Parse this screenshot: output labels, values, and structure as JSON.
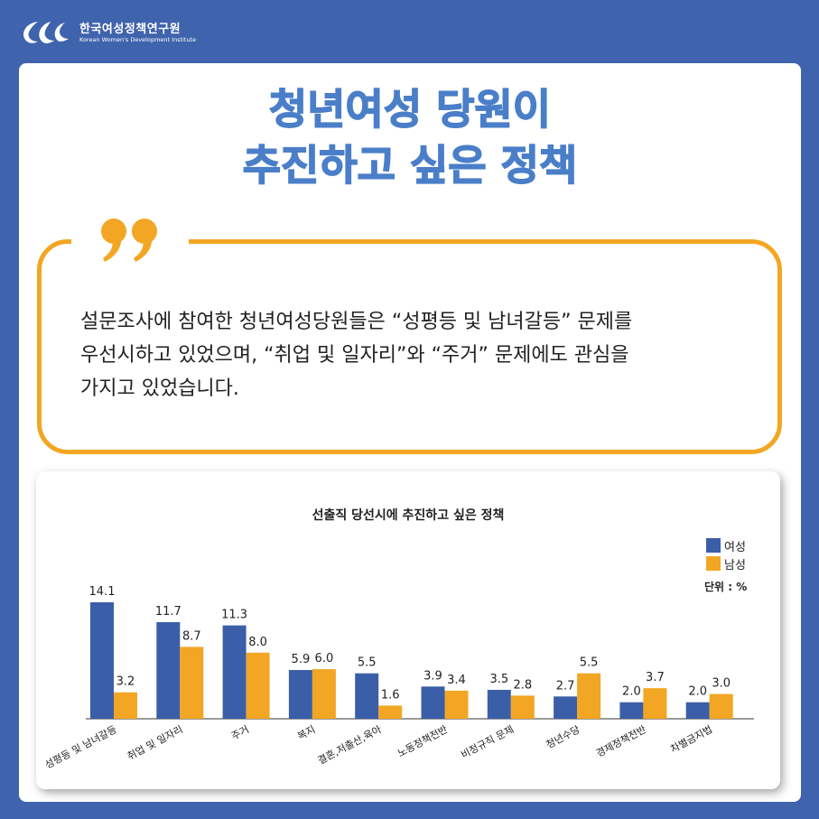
{
  "logo": {
    "name_ko": "한국여성정책연구원",
    "name_en": "Korean Women's Development Institute"
  },
  "title": {
    "line1": "청년여성 당원이",
    "line2": "추진하고 싶은 정책"
  },
  "quote": {
    "line1": "설문조사에 참여한 청년여성당원들은 “성평등 및 남녀갈등” 문제를",
    "line2": "우선시하고 있었으며, “취업 및 일자리”와 “주거” 문제에도 관심을",
    "line3": "가지고 있었습니다."
  },
  "colors": {
    "female": "#3b5ea8",
    "male": "#f2a623",
    "title": "#4a7ec8",
    "background": "#3f63ad"
  },
  "chart_data": {
    "type": "bar",
    "title": "선출직 당선시에 추진하고 싶은 정책",
    "unit": "단위 : %",
    "categories": [
      "성평등 및 남녀갈등",
      "취업 및 일자리",
      "주거",
      "복지",
      "결혼,저출산,육아",
      "노동정책전반",
      "비정규직 문제",
      "청년수당",
      "경제정책전반",
      "차별금지법"
    ],
    "series": [
      {
        "name": "여성",
        "values": [
          14.1,
          11.7,
          11.3,
          5.9,
          5.5,
          3.9,
          3.5,
          2.7,
          2.0,
          2.0
        ]
      },
      {
        "name": "남성",
        "values": [
          3.2,
          8.7,
          8.0,
          6.0,
          1.6,
          3.4,
          2.8,
          5.5,
          3.7,
          3.0
        ]
      }
    ],
    "ylim": [
      0,
      15
    ],
    "legend": "top-right",
    "grid": false
  }
}
